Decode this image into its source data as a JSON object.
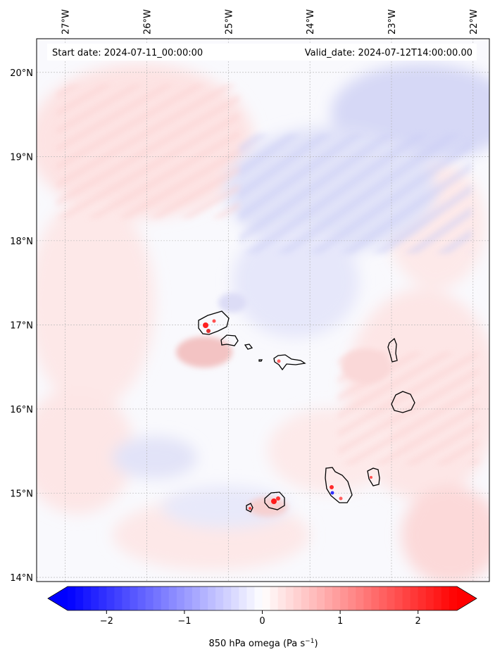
{
  "header": {
    "start_date": "Start date: 2024-07-11_00:00:00",
    "valid_date": "Valid_date: 2024-07-12T14:00:00.00"
  },
  "map": {
    "lon_labels": [
      "27°W",
      "26°W",
      "25°W",
      "24°W",
      "23°W",
      "22°W"
    ],
    "lat_labels": [
      "20°N",
      "19°N",
      "18°N",
      "17°N",
      "16°N",
      "15°N",
      "14°N"
    ],
    "lon_values": [
      -27,
      -26,
      -25,
      -24,
      -23,
      -22
    ],
    "lat_values": [
      20,
      19,
      18,
      17,
      16,
      15,
      14
    ],
    "lon_range": [
      -27.35,
      -21.8
    ],
    "lat_range": [
      13.95,
      20.4
    ],
    "gridlines": true,
    "field": "850 hPa omega",
    "islands": [
      "Santo Antão",
      "São Vicente",
      "Santa Luzia",
      "São Nicolau",
      "Sal",
      "Boa Vista",
      "Maio",
      "Santiago",
      "Fogo",
      "Brava"
    ]
  },
  "colorbar": {
    "ticks": [
      "−2",
      "−1",
      "0",
      "1",
      "2"
    ],
    "tick_values": [
      -2,
      -1,
      0,
      1,
      2
    ],
    "range": [
      -2.5,
      2.5
    ],
    "extend": "both",
    "label_main": "850 hPa omega (Pa s",
    "label_sup": "−1",
    "label_tail": ")",
    "colors": {
      "min": "#0000ff",
      "mid": "#ffffff",
      "max": "#ff0000"
    }
  }
}
